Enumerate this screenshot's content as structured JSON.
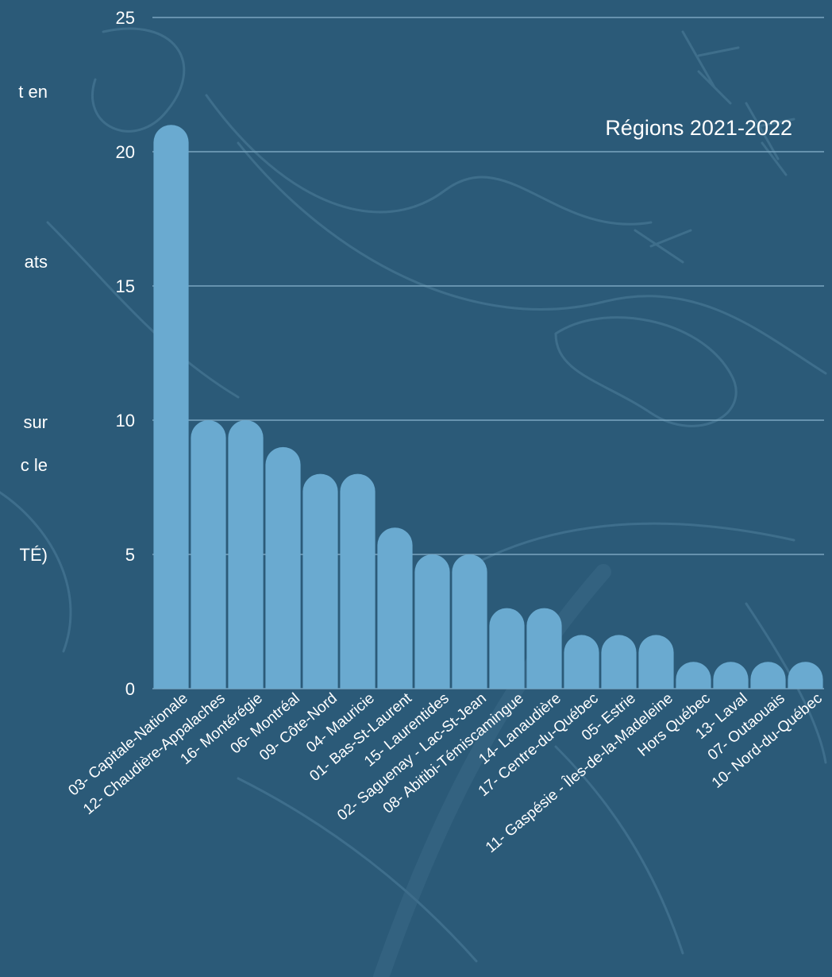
{
  "page": {
    "background_color": "#2b5a78",
    "side_text_fragments": [
      "t en",
      "ats",
      "sur",
      "c le",
      "TÉ)"
    ]
  },
  "chart_data": {
    "type": "bar",
    "title": "Régions 2021-2022",
    "xlabel": "",
    "ylabel": "",
    "ylim": [
      0,
      25
    ],
    "yticks": [
      0,
      5,
      10,
      15,
      20,
      25
    ],
    "grid": true,
    "bar_color": "#6aaad0",
    "grid_color": "#7aa5c0",
    "categories": [
      "03- Capitale-Nationale",
      "12- Chaudière-Appalaches",
      "16- Montérégie",
      "06- Montréal",
      "09- Côte-Nord",
      "04- Mauricie",
      "01- Bas-St-Laurent",
      "15- Laurentides",
      "02- Saguenay - Lac-St-Jean",
      "08- Abitibi-Témiscamingue",
      "14- Lanaudière",
      "17- Centre-du-Québec",
      "05- Estrie",
      "11- Gaspésie - Îles-de-la-Madeleine",
      "Hors Québec",
      "13- Laval",
      "07- Outaouais",
      "10- Nord-du-Québec"
    ],
    "values": [
      21,
      10,
      10,
      9,
      8,
      8,
      6,
      5,
      5,
      3,
      3,
      2,
      2,
      2,
      1,
      1,
      1,
      1
    ]
  }
}
